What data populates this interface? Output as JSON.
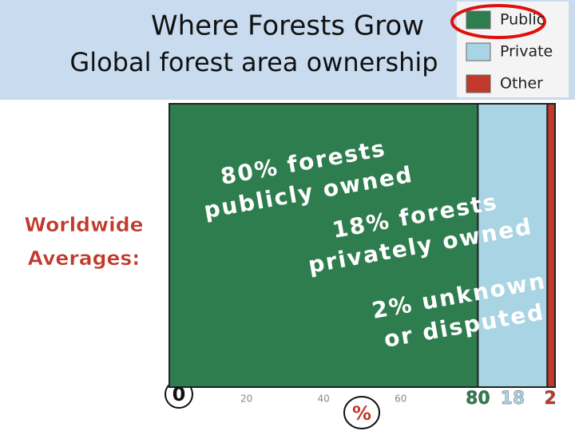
{
  "chart_data": {
    "type": "stacked-bar",
    "title": "Where Forests Grow",
    "subtitle": "Global forest area ownership",
    "side_label": [
      "Worldwide",
      "Averages:"
    ],
    "xlabel": "%",
    "xlim": [
      0,
      100
    ],
    "xticks": [
      0,
      20,
      40,
      60
    ],
    "series": [
      {
        "name": "Public",
        "color": "#2e7d4f",
        "values": [
          80
        ]
      },
      {
        "name": "Private",
        "color": "#a9d4e4",
        "values": [
          18
        ]
      },
      {
        "name": "Other",
        "color": "#c0392b",
        "values": [
          2
        ]
      }
    ],
    "annotations": [
      [
        "80% forests",
        "publicly owned"
      ],
      [
        "18% forests",
        "privately owned"
      ],
      [
        "2% unknown",
        "or disputed"
      ]
    ],
    "legend": "top-right"
  }
}
